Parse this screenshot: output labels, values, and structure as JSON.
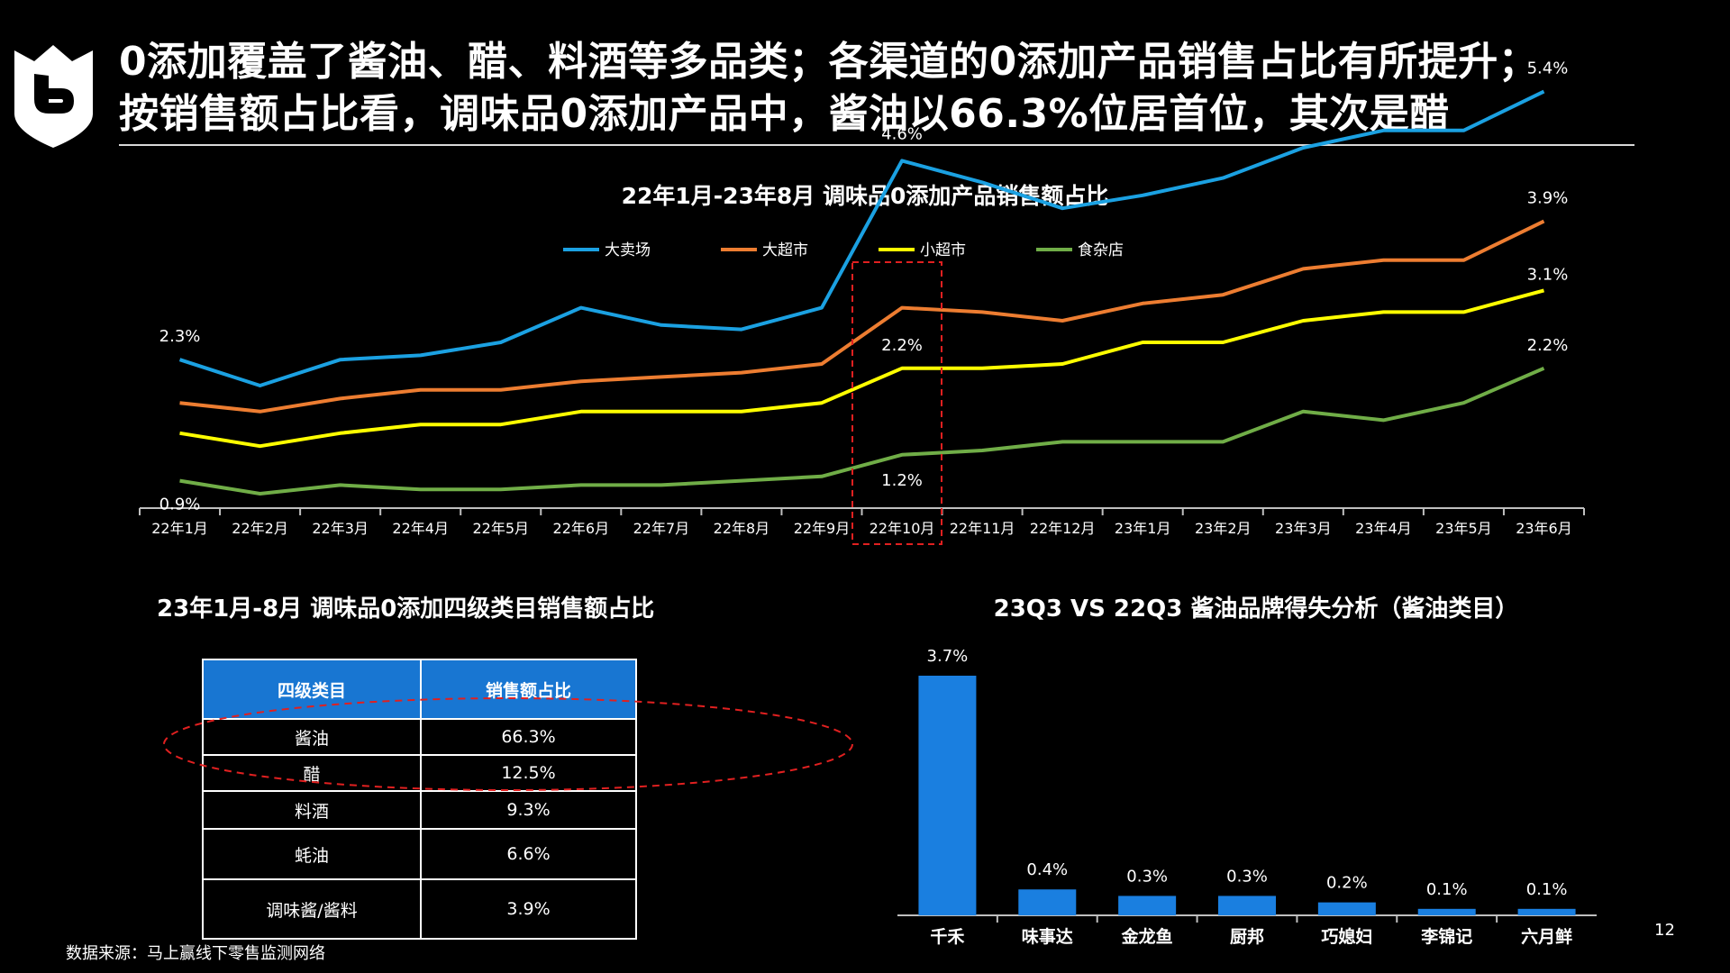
{
  "title_lines": [
    "0添加覆盖了酱油、醋、料酒等多品类；各渠道的0添加产品销售占比有所提升；",
    "按销售额占比看，调味品0添加产品中，酱油以66.3%位居首位，其次是醋"
  ],
  "line_chart": {
    "title": "22年1月-23年8月 调味品0添加产品销售额占比",
    "categories": [
      "22年1月",
      "22年2月",
      "22年3月",
      "22年4月",
      "22年5月",
      "22年6月",
      "22年7月",
      "22年8月",
      "22年9月",
      "22年10月",
      "22年11月",
      "22年12月",
      "23年1月",
      "23年2月",
      "23年3月",
      "23年4月",
      "23年5月",
      "23年6月"
    ],
    "series": [
      {
        "name": "大卖场",
        "color": "#1ba1e2"
      },
      {
        "name": "大超市",
        "color": "#ed7d31"
      },
      {
        "name": "小超市",
        "color": "#ffff00"
      },
      {
        "name": "食杂店",
        "color": "#70ad47"
      }
    ],
    "data_labels": [
      {
        "text": "2.3%"
      },
      {
        "text": "0.9%"
      },
      {
        "text": "4.6%"
      },
      {
        "text": "2.2%"
      },
      {
        "text": "1.2%"
      },
      {
        "text": "5.4%"
      },
      {
        "text": "3.9%"
      },
      {
        "text": "3.1%"
      },
      {
        "text": "2.2%"
      }
    ]
  },
  "chart_data": [
    {
      "type": "line",
      "title": "22年1月-23年8月 调味品0添加产品销售额占比",
      "categories": [
        "22年1月",
        "22年2月",
        "22年3月",
        "22年4月",
        "22年5月",
        "22年6月",
        "22年7月",
        "22年8月",
        "22年9月",
        "22年10月",
        "22年11月",
        "22年12月",
        "23年1月",
        "23年2月",
        "23年3月",
        "23年4月",
        "23年5月",
        "23年6月"
      ],
      "series": [
        {
          "name": "大卖场",
          "values": [
            2.3,
            2.0,
            2.3,
            2.35,
            2.5,
            2.9,
            2.7,
            2.65,
            2.9,
            4.6,
            4.35,
            4.05,
            4.2,
            4.4,
            4.75,
            4.95,
            4.95,
            5.4
          ]
        },
        {
          "name": "大超市",
          "values": [
            1.8,
            1.7,
            1.85,
            1.95,
            1.95,
            2.05,
            2.1,
            2.15,
            2.25,
            2.9,
            2.85,
            2.75,
            2.95,
            3.05,
            3.35,
            3.45,
            3.45,
            3.9
          ]
        },
        {
          "name": "小超市",
          "values": [
            1.45,
            1.3,
            1.45,
            1.55,
            1.55,
            1.7,
            1.7,
            1.7,
            1.8,
            2.2,
            2.2,
            2.25,
            2.5,
            2.5,
            2.75,
            2.85,
            2.85,
            3.1
          ]
        },
        {
          "name": "食杂店",
          "values": [
            0.9,
            0.75,
            0.85,
            0.8,
            0.8,
            0.85,
            0.85,
            0.9,
            0.95,
            1.2,
            1.25,
            1.35,
            1.35,
            1.35,
            1.7,
            1.6,
            1.8,
            2.2
          ]
        }
      ]
    },
    {
      "type": "table",
      "title": "23年1月-8月 调味品0添加四级类目销售额占比",
      "columns": [
        "四级类目",
        "销售额占比"
      ],
      "rows": [
        [
          "酱油",
          "66.3%"
        ],
        [
          "醋",
          "12.5%"
        ],
        [
          "料酒",
          "9.3%"
        ],
        [
          "蚝油",
          "6.6%"
        ],
        [
          "调味酱/酱料",
          "3.9%"
        ]
      ]
    },
    {
      "type": "bar",
      "title": "23Q3 VS 22Q3 酱油品牌得失分析（酱油类目）",
      "categories": [
        "千禾",
        "味事达",
        "金龙鱼",
        "厨邦",
        "巧媳妇",
        "李锦记",
        "六月鲜"
      ],
      "values": [
        3.7,
        0.4,
        0.3,
        0.3,
        0.2,
        0.1,
        0.1
      ],
      "labels": [
        "3.7%",
        "0.4%",
        "0.3%",
        "0.3%",
        "0.2%",
        "0.1%",
        "0.1%"
      ],
      "color": "#1a7fe0"
    }
  ],
  "footer": {
    "source": "数据来源：马上赢线下零售监测网络",
    "page": "12"
  }
}
